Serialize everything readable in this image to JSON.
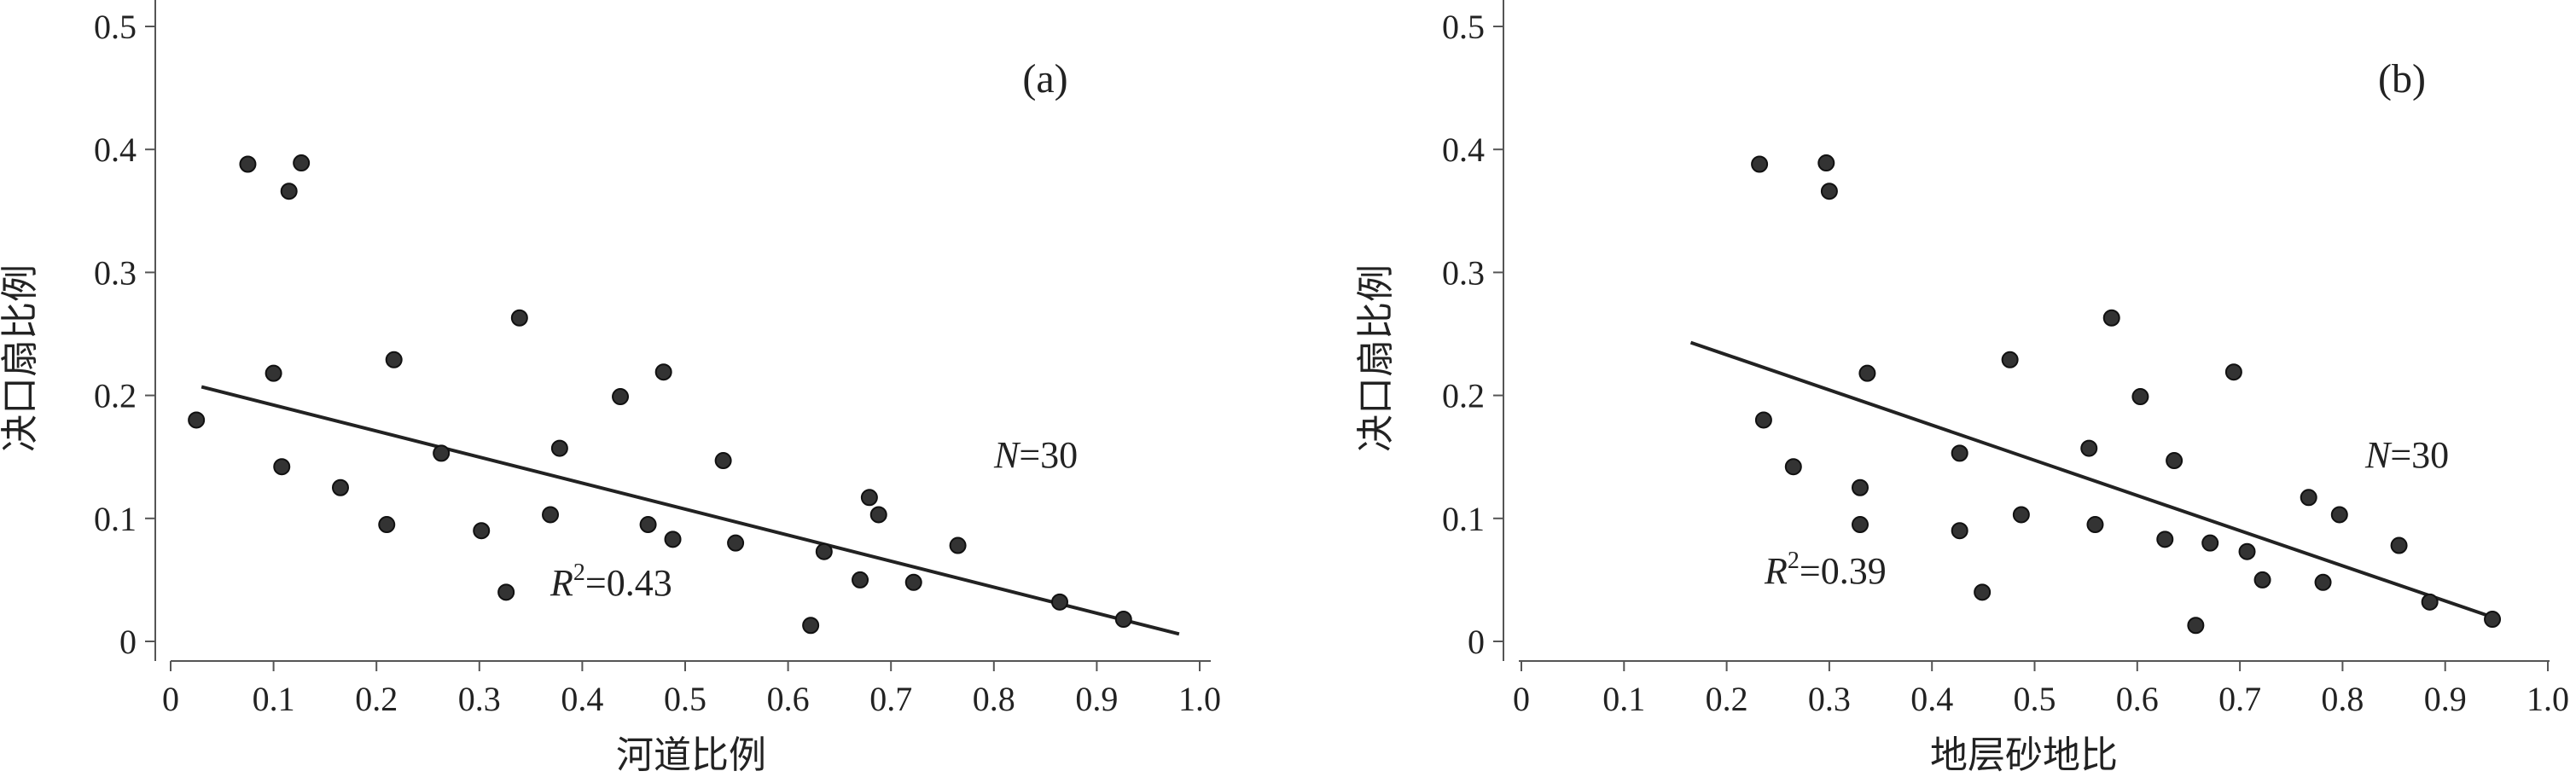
{
  "chart_data": [
    {
      "type": "scatter",
      "panel_label": "(a)",
      "xlabel": "河道比例",
      "ylabel": "决口扇比例",
      "xlim": [
        0,
        1.0
      ],
      "ylim": [
        0,
        0.5
      ],
      "xticks": [
        0,
        0.1,
        0.2,
        0.3,
        0.4,
        0.5,
        0.6,
        0.7,
        0.8,
        0.9,
        1.0
      ],
      "xtick_labels": [
        "0",
        "0.1",
        "0.2",
        "0.3",
        "0.4",
        "0.5",
        "0.6",
        "0.7",
        "0.8",
        "0.9",
        "1.0"
      ],
      "yticks": [
        0,
        0.1,
        0.2,
        0.3,
        0.4,
        0.5
      ],
      "ytick_labels": [
        "0",
        "0.1",
        "0.2",
        "0.3",
        "0.4",
        "0.5"
      ],
      "points": [
        {
          "x": 0.025,
          "y": 0.18
        },
        {
          "x": 0.075,
          "y": 0.388
        },
        {
          "x": 0.1,
          "y": 0.218
        },
        {
          "x": 0.108,
          "y": 0.142
        },
        {
          "x": 0.115,
          "y": 0.366
        },
        {
          "x": 0.127,
          "y": 0.389
        },
        {
          "x": 0.165,
          "y": 0.125
        },
        {
          "x": 0.21,
          "y": 0.095
        },
        {
          "x": 0.217,
          "y": 0.229
        },
        {
          "x": 0.263,
          "y": 0.153
        },
        {
          "x": 0.302,
          "y": 0.09
        },
        {
          "x": 0.326,
          "y": 0.04
        },
        {
          "x": 0.339,
          "y": 0.263
        },
        {
          "x": 0.369,
          "y": 0.103
        },
        {
          "x": 0.378,
          "y": 0.157
        },
        {
          "x": 0.437,
          "y": 0.199
        },
        {
          "x": 0.464,
          "y": 0.095
        },
        {
          "x": 0.479,
          "y": 0.219
        },
        {
          "x": 0.488,
          "y": 0.083
        },
        {
          "x": 0.537,
          "y": 0.147
        },
        {
          "x": 0.549,
          "y": 0.08
        },
        {
          "x": 0.622,
          "y": 0.013
        },
        {
          "x": 0.635,
          "y": 0.073
        },
        {
          "x": 0.67,
          "y": 0.05
        },
        {
          "x": 0.679,
          "y": 0.117
        },
        {
          "x": 0.688,
          "y": 0.103
        },
        {
          "x": 0.722,
          "y": 0.048
        },
        {
          "x": 0.765,
          "y": 0.078
        },
        {
          "x": 0.864,
          "y": 0.032
        },
        {
          "x": 0.926,
          "y": 0.018
        }
      ],
      "trendline": [
        {
          "x": 0.03,
          "y": 0.207
        },
        {
          "x": 0.98,
          "y": 0.006
        }
      ],
      "annotations": {
        "n_prefix": "N",
        "n_value": "=30",
        "r2_prefix": "R",
        "r2_sup": "2",
        "r2_value": "=0.43"
      }
    },
    {
      "type": "scatter",
      "panel_label": "(b)",
      "xlabel": "地层砂地比",
      "ylabel": "决口扇比例",
      "xlim": [
        0,
        1.0
      ],
      "ylim": [
        0,
        0.5
      ],
      "xticks": [
        0,
        0.1,
        0.2,
        0.3,
        0.4,
        0.5,
        0.6,
        0.7,
        0.8,
        0.9,
        1.0
      ],
      "xtick_labels": [
        "0",
        "0.1",
        "0.2",
        "0.3",
        "0.4",
        "0.5",
        "0.6",
        "0.7",
        "0.8",
        "0.9",
        "1.0"
      ],
      "yticks": [
        0,
        0.1,
        0.2,
        0.3,
        0.4,
        0.5
      ],
      "ytick_labels": [
        "0",
        "0.1",
        "0.2",
        "0.3",
        "0.4",
        "0.5"
      ],
      "points": [
        {
          "x": 0.232,
          "y": 0.388
        },
        {
          "x": 0.236,
          "y": 0.18
        },
        {
          "x": 0.265,
          "y": 0.142
        },
        {
          "x": 0.297,
          "y": 0.389
        },
        {
          "x": 0.3,
          "y": 0.366
        },
        {
          "x": 0.33,
          "y": 0.125
        },
        {
          "x": 0.33,
          "y": 0.095
        },
        {
          "x": 0.337,
          "y": 0.218
        },
        {
          "x": 0.427,
          "y": 0.153
        },
        {
          "x": 0.427,
          "y": 0.09
        },
        {
          "x": 0.449,
          "y": 0.04
        },
        {
          "x": 0.476,
          "y": 0.229
        },
        {
          "x": 0.487,
          "y": 0.103
        },
        {
          "x": 0.553,
          "y": 0.157
        },
        {
          "x": 0.559,
          "y": 0.095
        },
        {
          "x": 0.575,
          "y": 0.263
        },
        {
          "x": 0.603,
          "y": 0.199
        },
        {
          "x": 0.627,
          "y": 0.083
        },
        {
          "x": 0.636,
          "y": 0.147
        },
        {
          "x": 0.657,
          "y": 0.013
        },
        {
          "x": 0.671,
          "y": 0.08
        },
        {
          "x": 0.694,
          "y": 0.219
        },
        {
          "x": 0.707,
          "y": 0.073
        },
        {
          "x": 0.722,
          "y": 0.05
        },
        {
          "x": 0.767,
          "y": 0.117
        },
        {
          "x": 0.781,
          "y": 0.048
        },
        {
          "x": 0.797,
          "y": 0.103
        },
        {
          "x": 0.855,
          "y": 0.078
        },
        {
          "x": 0.885,
          "y": 0.032
        },
        {
          "x": 0.946,
          "y": 0.018
        }
      ],
      "trendline": [
        {
          "x": 0.165,
          "y": 0.243
        },
        {
          "x": 0.945,
          "y": 0.02
        }
      ],
      "annotations": {
        "n_prefix": "N",
        "n_value": "=30",
        "r2_prefix": "R",
        "r2_sup": "2",
        "r2_value": "=0.39"
      }
    }
  ],
  "colors": {
    "points": "#333333",
    "point_edge": "#111111",
    "line": "#222222",
    "axis": "#555555",
    "text": "#222222"
  }
}
